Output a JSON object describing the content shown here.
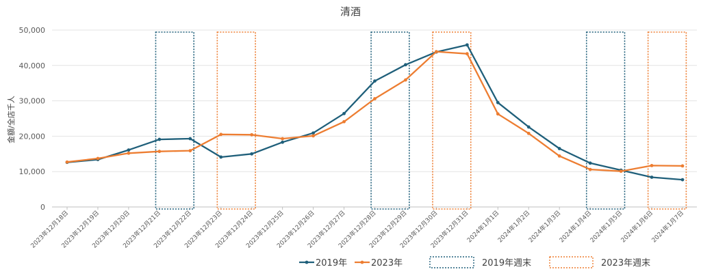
{
  "chart_data": {
    "type": "line",
    "title": "清酒",
    "ylabel": "金額/全店千人",
    "xlabel": "",
    "ylim": [
      0,
      50000
    ],
    "yticks": [
      "0",
      "10,000",
      "20,000",
      "30,000",
      "40,000",
      "50,000"
    ],
    "grid": true,
    "legend_position": "bottom",
    "categories": [
      "2023年12月18日",
      "2023年12月19日",
      "2023年12月20日",
      "2023年12月21日",
      "2023年12月22日",
      "2023年12月23日",
      "2023年12月24日",
      "2023年12月25日",
      "2023年12月26日",
      "2023年12月27日",
      "2023年12月28日",
      "2023年12月29日",
      "2023年12月30日",
      "2023年12月31日",
      "2024年1月1日",
      "2024年1月2日",
      "2024年1月3日",
      "2024年1月4日",
      "2024年1月5日",
      "2024年1月6日",
      "2024年1月7日"
    ],
    "series": [
      {
        "name": "2019年",
        "color": "#1f5f7a",
        "values": [
          12600,
          13400,
          16100,
          19100,
          19300,
          14100,
          15000,
          18300,
          20900,
          26400,
          35600,
          40200,
          43800,
          45800,
          29500,
          22600,
          16500,
          12400,
          10400,
          8400,
          7700
        ]
      },
      {
        "name": "2023年",
        "color": "#ed7d31",
        "values": [
          12700,
          13700,
          15200,
          15700,
          15900,
          20500,
          20400,
          19300,
          20100,
          24100,
          30600,
          35900,
          43900,
          43300,
          26300,
          20800,
          14400,
          10600,
          10100,
          11700,
          11600
        ]
      }
    ],
    "weekend_boxes": [
      {
        "group": "2019年週末",
        "color": "#1f5f7a",
        "from": "2023年12月21日",
        "to": "2023年12月22日"
      },
      {
        "group": "2023年週末",
        "color": "#ed7d31",
        "from": "2023年12月23日",
        "to": "2023年12月24日"
      },
      {
        "group": "2019年週末",
        "color": "#1f5f7a",
        "from": "2023年12月28日",
        "to": "2023年12月29日"
      },
      {
        "group": "2023年週末",
        "color": "#ed7d31",
        "from": "2023年12月30日",
        "to": "2023年12月31日"
      },
      {
        "group": "2019年週末",
        "color": "#1f5f7a",
        "from": "2024年1月4日",
        "to": "2024年1月5日"
      },
      {
        "group": "2023年週末",
        "color": "#ed7d31",
        "from": "2024年1月6日",
        "to": "2024年1月7日"
      }
    ],
    "legend": [
      {
        "label": "2019年",
        "kind": "line",
        "color": "#1f5f7a"
      },
      {
        "label": "2023年",
        "kind": "line",
        "color": "#ed7d31"
      },
      {
        "label": "2019年週末",
        "kind": "box",
        "color": "#1f5f7a"
      },
      {
        "label": "2023年週末",
        "kind": "box",
        "color": "#ed7d31"
      }
    ]
  }
}
